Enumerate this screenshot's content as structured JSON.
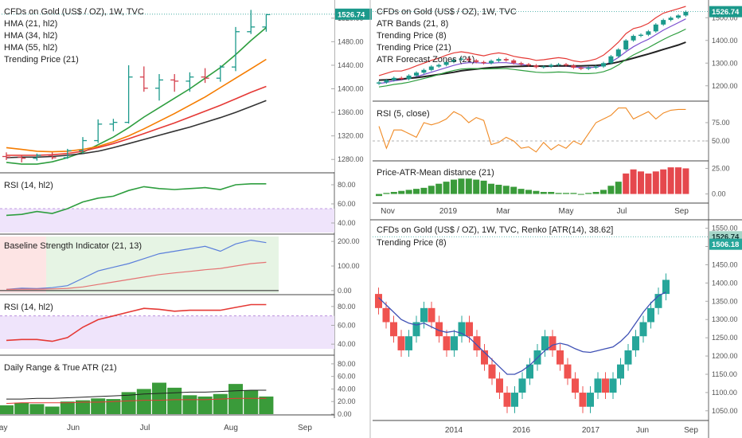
{
  "chart_data": [
    {
      "type": "ohlc",
      "title": "CFDs on Gold (US$ / OZ), 1W, TVC",
      "legend": [
        "HMA (21, hl2)",
        "HMA (34, hl2)",
        "HMA (55, hl2)",
        "Trending Price (21)"
      ],
      "last_price": "1526.74",
      "ylim": [
        1260,
        1540
      ],
      "ticks": [
        "1280.00",
        "1320.00",
        "1360.00",
        "1400.00",
        "1440.00",
        "1480.00",
        "1520.00"
      ],
      "tick_values": [
        1280,
        1320,
        1360,
        1400,
        1440,
        1480,
        1520
      ],
      "x_labels": [
        "May",
        "Jun",
        "Jul",
        "Aug",
        "Sep"
      ],
      "bars": [
        {
          "o": 1285,
          "h": 1292,
          "l": 1279,
          "c": 1284
        },
        {
          "o": 1284,
          "h": 1287,
          "l": 1275,
          "c": 1282
        },
        {
          "o": 1282,
          "h": 1290,
          "l": 1278,
          "c": 1287
        },
        {
          "o": 1287,
          "h": 1292,
          "l": 1280,
          "c": 1283
        },
        {
          "o": 1283,
          "h": 1298,
          "l": 1281,
          "c": 1295
        },
        {
          "o": 1295,
          "h": 1318,
          "l": 1290,
          "c": 1312
        },
        {
          "o": 1312,
          "h": 1348,
          "l": 1308,
          "c": 1340
        },
        {
          "o": 1340,
          "h": 1349,
          "l": 1328,
          "c": 1343
        },
        {
          "o": 1343,
          "h": 1440,
          "l": 1341,
          "c": 1420
        },
        {
          "o": 1420,
          "h": 1438,
          "l": 1395,
          "c": 1401
        },
        {
          "o": 1401,
          "h": 1425,
          "l": 1380,
          "c": 1415
        },
        {
          "o": 1415,
          "h": 1425,
          "l": 1395,
          "c": 1413
        },
        {
          "o": 1413,
          "h": 1428,
          "l": 1395,
          "c": 1420
        },
        {
          "o": 1420,
          "h": 1435,
          "l": 1410,
          "c": 1418
        },
        {
          "o": 1418,
          "h": 1440,
          "l": 1412,
          "c": 1437
        },
        {
          "o": 1437,
          "h": 1505,
          "l": 1430,
          "c": 1497
        },
        {
          "o": 1497,
          "h": 1534,
          "l": 1493,
          "c": 1505
        },
        {
          "o": 1505,
          "h": 1527,
          "l": 1497,
          "c": 1526
        }
      ],
      "series": [
        {
          "name": "HMA (21, hl2)",
          "color": "#2e9e3f",
          "values": [
            1275,
            1272,
            1272,
            1276,
            1283,
            1292,
            1305,
            1318,
            1334,
            1352,
            1368,
            1384,
            1400,
            1418,
            1436,
            1458,
            1482,
            1504
          ]
        },
        {
          "name": "HMA (34, hl2)",
          "color": "#f57c00",
          "values": [
            1300,
            1297,
            1294,
            1293,
            1294,
            1297,
            1302,
            1310,
            1320,
            1332,
            1345,
            1358,
            1372,
            1386,
            1402,
            1418,
            1434,
            1450
          ]
        },
        {
          "name": "HMA (55, hl2)",
          "color": "#e53935",
          "values": [
            1287,
            1287,
            1287,
            1288,
            1290,
            1294,
            1300,
            1307,
            1315,
            1324,
            1333,
            1342,
            1352,
            1362,
            1372,
            1383,
            1394,
            1404
          ]
        },
        {
          "name": "Trending Price (21)",
          "color": "#333333",
          "values": [
            1283,
            1284,
            1284,
            1285,
            1287,
            1290,
            1294,
            1300,
            1307,
            1314,
            1321,
            1328,
            1335,
            1343,
            1351,
            1360,
            1370,
            1380
          ]
        }
      ]
    },
    {
      "type": "line",
      "title": "RSI (14, hl2)",
      "ylim": [
        30,
        90
      ],
      "ticks": [
        "40.00",
        "60.00",
        "80.00"
      ],
      "tick_values": [
        40,
        60,
        80
      ],
      "band": [
        30,
        55
      ],
      "series": [
        {
          "name": "RSI (14, hl2)",
          "color": "#2e9e3f",
          "values": [
            48,
            49,
            52,
            50,
            55,
            62,
            66,
            68,
            74,
            78,
            76,
            75,
            76,
            77,
            75,
            80,
            81,
            81
          ]
        }
      ]
    },
    {
      "type": "line",
      "title": "Baseline Strength Indicator (21, 13)",
      "ylim": [
        -10,
        220
      ],
      "ticks": [
        "0.00",
        "100.00",
        "200.00"
      ],
      "tick_values": [
        0,
        100,
        200
      ],
      "series": [
        {
          "name": "",
          "color": "#5b7fdb",
          "values": [
            5,
            10,
            8,
            12,
            20,
            50,
            80,
            95,
            110,
            130,
            150,
            160,
            170,
            180,
            160,
            190,
            205,
            195
          ]
        },
        {
          "name": "",
          "color": "#e57373",
          "values": [
            5,
            6,
            6,
            7,
            9,
            15,
            25,
            35,
            45,
            55,
            65,
            72,
            78,
            85,
            90,
            100,
            110,
            115
          ]
        }
      ]
    },
    {
      "type": "line",
      "title": "RSI (14, hl2)",
      "ylim": [
        30,
        90
      ],
      "ticks": [
        "40.00",
        "60.00",
        "80.00"
      ],
      "tick_values": [
        40,
        60,
        80
      ],
      "band": [
        35,
        70
      ],
      "series": [
        {
          "name": "RSI (14, hl2)",
          "color": "#e53935",
          "values": [
            44,
            45,
            45,
            43,
            47,
            58,
            66,
            70,
            74,
            78,
            77,
            75,
            76,
            76,
            76,
            79,
            82,
            82
          ]
        }
      ]
    },
    {
      "type": "bar",
      "title": "Daily Range & True ATR (21)",
      "ylim": [
        0,
        90
      ],
      "ticks": [
        "0.00",
        "20.00",
        "40.00",
        "60.00",
        "80.00"
      ],
      "tick_values": [
        0,
        20,
        40,
        60,
        80
      ],
      "values": [
        14,
        18,
        16,
        12,
        20,
        22,
        25,
        24,
        35,
        40,
        50,
        42,
        30,
        28,
        32,
        48,
        38,
        28
      ],
      "series": [
        {
          "name": "True ATR",
          "color": "#222222",
          "values": [
            24,
            24,
            25,
            25,
            26,
            27,
            28,
            29,
            30,
            32,
            33,
            34,
            35,
            35,
            36,
            37,
            38,
            38
          ]
        },
        {
          "name": "Daily Range",
          "color": "#e53935",
          "values": [
            17,
            18,
            18,
            18,
            18,
            19,
            19,
            20,
            21,
            22,
            22,
            23,
            23,
            23,
            24,
            25,
            25,
            25
          ]
        }
      ]
    },
    {
      "type": "candlestick",
      "title": "CFDs on Gold (US$ / OZ), 1W, TVC",
      "legend": [
        "ATR Bands (21, 8)",
        "Trending Price (8)",
        "Trending Price (21)",
        "ATR Forecast Zones (21)"
      ],
      "last_price": "1526.74",
      "ylim": [
        1150,
        1550
      ],
      "ticks": [
        "1200.00",
        "1300.00",
        "1400.00",
        "1500.00"
      ],
      "tick_values": [
        1200,
        1300,
        1400,
        1500
      ],
      "x_labels": [
        "Nov",
        "2019",
        "Mar",
        "May",
        "Jul",
        "Sep"
      ],
      "closes": [
        1215,
        1225,
        1235,
        1230,
        1245,
        1258,
        1270,
        1285,
        1292,
        1305,
        1315,
        1320,
        1312,
        1305,
        1300,
        1310,
        1318,
        1312,
        1300,
        1295,
        1290,
        1282,
        1285,
        1292,
        1295,
        1290,
        1280,
        1275,
        1280,
        1285,
        1300,
        1330,
        1360,
        1400,
        1420,
        1425,
        1440,
        1470,
        1490,
        1500,
        1510,
        1526
      ],
      "series": [
        {
          "name": "ATR Bands upper",
          "color": "#e53935",
          "values": [
            1245,
            1255,
            1265,
            1265,
            1275,
            1288,
            1300,
            1312,
            1322,
            1335,
            1345,
            1350,
            1345,
            1338,
            1332,
            1340,
            1345,
            1340,
            1330,
            1324,
            1320,
            1312,
            1315,
            1320,
            1324,
            1320,
            1310,
            1305,
            1310,
            1318,
            1335,
            1362,
            1392,
            1430,
            1452,
            1460,
            1475,
            1500,
            1520,
            1530,
            1540,
            1550
          ]
        },
        {
          "name": "Trending Price (8)",
          "color": "#7b4fcf",
          "values": [
            1210,
            1215,
            1222,
            1226,
            1232,
            1240,
            1250,
            1260,
            1270,
            1280,
            1290,
            1298,
            1302,
            1302,
            1300,
            1300,
            1302,
            1302,
            1298,
            1294,
            1290,
            1286,
            1284,
            1285,
            1287,
            1286,
            1283,
            1280,
            1280,
            1282,
            1290,
            1305,
            1325,
            1350,
            1372,
            1390,
            1405,
            1425,
            1445,
            1462,
            1478,
            1495
          ]
        },
        {
          "name": "Trending Price (21)",
          "color": "#222222",
          "values": [
            1225,
            1226,
            1228,
            1230,
            1233,
            1236,
            1240,
            1245,
            1250,
            1255,
            1260,
            1266,
            1270,
            1274,
            1277,
            1280,
            1282,
            1284,
            1285,
            1286,
            1287,
            1287,
            1287,
            1287,
            1288,
            1288,
            1288,
            1288,
            1289,
            1290,
            1293,
            1298,
            1305,
            1313,
            1322,
            1331,
            1340,
            1350,
            1360,
            1370,
            1380,
            1392
          ]
        },
        {
          "name": "ATR Bands lower",
          "color": "#2e9e3f",
          "values": [
            1195,
            1200,
            1206,
            1210,
            1216,
            1224,
            1232,
            1240,
            1250,
            1260,
            1268,
            1274,
            1276,
            1276,
            1274,
            1275,
            1276,
            1276,
            1272,
            1268,
            1264,
            1260,
            1258,
            1259,
            1261,
            1260,
            1257,
            1254,
            1254,
            1256,
            1262,
            1274,
            1292,
            1316,
            1336,
            1352,
            1368,
            1386,
            1404,
            1420,
            1434,
            1450
          ]
        }
      ]
    },
    {
      "type": "line",
      "title": "RSI (5, close)",
      "ylim": [
        25,
        100
      ],
      "ticks": [
        "50.00",
        "75.00"
      ],
      "tick_values": [
        50,
        75
      ],
      "series": [
        {
          "name": "RSI (5, close)",
          "color": "#f08a24",
          "values": [
            70,
            40,
            65,
            65,
            60,
            55,
            75,
            72,
            75,
            80,
            90,
            85,
            75,
            82,
            78,
            45,
            48,
            55,
            50,
            40,
            42,
            35,
            48,
            38,
            45,
            40,
            50,
            45,
            60,
            75,
            80,
            85,
            95,
            95,
            80,
            85,
            90,
            80,
            88,
            92,
            93,
            93
          ]
        }
      ]
    },
    {
      "type": "bar",
      "title": "Price-ATR-Mean distance (21)",
      "ylim": [
        -5,
        30
      ],
      "ticks": [
        "0.00",
        "25.00"
      ],
      "tick_values": [
        0,
        25
      ],
      "values": [
        -2,
        1,
        2,
        3,
        4,
        5,
        6,
        8,
        10,
        12,
        14,
        15,
        15,
        14,
        13,
        10,
        9,
        8,
        7,
        5,
        4,
        3,
        2,
        2,
        1,
        1,
        1,
        0,
        1,
        2,
        4,
        8,
        12,
        20,
        24,
        22,
        20,
        22,
        24,
        26,
        26,
        25
      ],
      "highlight_from": 33
    },
    {
      "type": "renko",
      "title": "CFDs on Gold (US$ / OZ), 1W, TVC, Renko [ATR(14), 38.62]",
      "legend": [
        "Trending Price (8)"
      ],
      "last_price": "1526.74",
      "price_label": "1506.18",
      "ylim": [
        1030,
        1560
      ],
      "ticks": [
        "1050.00",
        "1100.00",
        "1150.00",
        "1200.00",
        "1250.00",
        "1300.00",
        "1350.00",
        "1400.00",
        "1450.00",
        "1500.00",
        "1550.00"
      ],
      "tick_values": [
        1050,
        1100,
        1150,
        1200,
        1250,
        1300,
        1350,
        1400,
        1450,
        1500,
        1550
      ],
      "x_labels": [
        "2014",
        "2016",
        "2017",
        "Jun",
        "Sep"
      ],
      "bricks": [
        -1,
        -1,
        -1,
        -1,
        1,
        1,
        1,
        -1,
        -1,
        -1,
        1,
        1,
        -1,
        -1,
        -1,
        -1,
        -1,
        -1,
        1,
        1,
        1,
        1,
        1,
        -1,
        -1,
        -1,
        -1,
        -1,
        1,
        1,
        -1,
        1,
        1,
        1,
        1,
        1,
        1,
        1,
        1
      ],
      "trend_values": [
        1360,
        1340,
        1320,
        1300,
        1290,
        1285,
        1290,
        1280,
        1270,
        1265,
        1268,
        1262,
        1250,
        1230,
        1210,
        1190,
        1170,
        1150,
        1150,
        1160,
        1175,
        1195,
        1215,
        1230,
        1235,
        1230,
        1220,
        1212,
        1210,
        1215,
        1220,
        1225,
        1240,
        1260,
        1290,
        1320,
        1345,
        1365,
        1375
      ]
    }
  ]
}
